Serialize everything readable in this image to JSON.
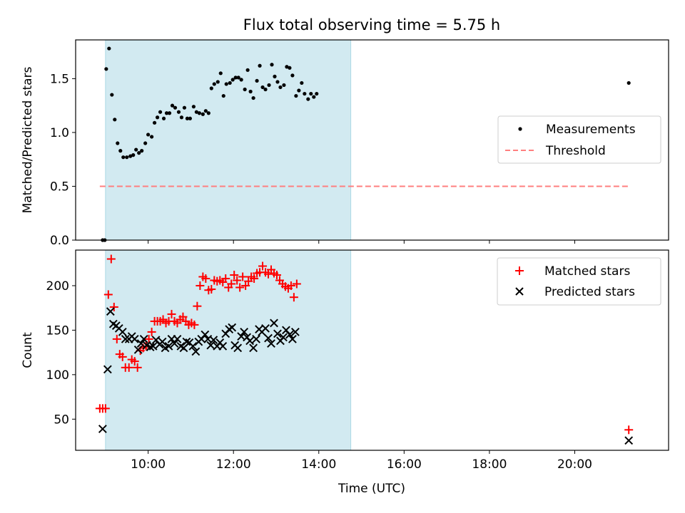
{
  "title": "Flux total observing time = 5.75 h",
  "xlabel": "Time (UTC)",
  "colors": {
    "shade": "#add8e6",
    "measurement": "#000000",
    "threshold": "#ff7f7f",
    "matched": "#ff0000",
    "predicted": "#000000"
  },
  "chart_data": [
    {
      "type": "scatter",
      "ylabel": "Matched/Predicted stars",
      "x_range_hours": [
        8.3,
        22.2
      ],
      "ylim": [
        0,
        1.86
      ],
      "y_ticks": [
        0.0,
        0.5,
        1.0,
        1.5
      ],
      "y_tick_labels": [
        "0.0",
        "0.5",
        "1.0",
        "1.5"
      ],
      "shaded_interval": [
        "09:00",
        "14:45"
      ],
      "legend": {
        "placement": "center-right",
        "entries": [
          "Measurements",
          "Threshold"
        ]
      },
      "threshold": {
        "name": "Threshold",
        "y": 0.5,
        "x": [
          "08:52",
          "21:15"
        ]
      },
      "series": [
        {
          "name": "Measurements",
          "points": [
            [
              "08:56",
              0.0
            ],
            [
              "08:59",
              0.0
            ],
            [
              "09:01",
              1.59
            ],
            [
              "09:05",
              1.78
            ],
            [
              "09:09",
              1.35
            ],
            [
              "09:13",
              1.12
            ],
            [
              "09:17",
              0.9
            ],
            [
              "09:21",
              0.83
            ],
            [
              "09:25",
              0.77
            ],
            [
              "09:30",
              0.77
            ],
            [
              "09:35",
              0.78
            ],
            [
              "09:39",
              0.79
            ],
            [
              "09:43",
              0.84
            ],
            [
              "09:47",
              0.81
            ],
            [
              "09:51",
              0.83
            ],
            [
              "09:56",
              0.9
            ],
            [
              "10:00",
              0.98
            ],
            [
              "10:05",
              0.96
            ],
            [
              "10:09",
              1.09
            ],
            [
              "10:13",
              1.14
            ],
            [
              "10:17",
              1.19
            ],
            [
              "10:22",
              1.13
            ],
            [
              "10:26",
              1.18
            ],
            [
              "10:30",
              1.18
            ],
            [
              "10:34",
              1.25
            ],
            [
              "10:38",
              1.23
            ],
            [
              "10:43",
              1.19
            ],
            [
              "10:47",
              1.14
            ],
            [
              "10:51",
              1.23
            ],
            [
              "10:55",
              1.13
            ],
            [
              "10:59",
              1.13
            ],
            [
              "11:04",
              1.24
            ],
            [
              "11:08",
              1.19
            ],
            [
              "11:12",
              1.18
            ],
            [
              "11:17",
              1.17
            ],
            [
              "11:21",
              1.2
            ],
            [
              "11:25",
              1.18
            ],
            [
              "11:29",
              1.41
            ],
            [
              "11:33",
              1.45
            ],
            [
              "11:38",
              1.47
            ],
            [
              "11:42",
              1.55
            ],
            [
              "11:46",
              1.34
            ],
            [
              "11:50",
              1.45
            ],
            [
              "11:55",
              1.46
            ],
            [
              "11:59",
              1.49
            ],
            [
              "12:03",
              1.51
            ],
            [
              "12:07",
              1.51
            ],
            [
              "12:11",
              1.49
            ],
            [
              "12:16",
              1.4
            ],
            [
              "12:20",
              1.58
            ],
            [
              "12:24",
              1.38
            ],
            [
              "12:28",
              1.32
            ],
            [
              "12:33",
              1.48
            ],
            [
              "12:37",
              1.62
            ],
            [
              "12:41",
              1.42
            ],
            [
              "12:45",
              1.4
            ],
            [
              "12:50",
              1.44
            ],
            [
              "12:54",
              1.63
            ],
            [
              "12:58",
              1.52
            ],
            [
              "13:02",
              1.47
            ],
            [
              "13:06",
              1.42
            ],
            [
              "13:11",
              1.44
            ],
            [
              "13:15",
              1.61
            ],
            [
              "13:19",
              1.6
            ],
            [
              "13:23",
              1.53
            ],
            [
              "13:28",
              1.34
            ],
            [
              "13:32",
              1.39
            ],
            [
              "13:36",
              1.46
            ],
            [
              "13:40",
              1.36
            ],
            [
              "13:45",
              1.31
            ],
            [
              "13:49",
              1.36
            ],
            [
              "13:53",
              1.33
            ],
            [
              "13:57",
              1.36
            ],
            [
              "21:16",
              1.46
            ]
          ]
        }
      ]
    },
    {
      "type": "scatter",
      "ylabel": "Count",
      "x_range_hours": [
        8.3,
        22.2
      ],
      "ylim": [
        15,
        240
      ],
      "y_ticks": [
        50,
        100,
        150,
        200
      ],
      "y_tick_labels": [
        "50",
        "100",
        "150",
        "200"
      ],
      "x_tick_labels": [
        "10:00",
        "12:00",
        "14:00",
        "16:00",
        "18:00",
        "20:00"
      ],
      "shaded_interval": [
        "09:00",
        "14:45"
      ],
      "legend": {
        "placement": "top-right",
        "entries": [
          "Matched stars",
          "Predicted stars"
        ]
      },
      "series": [
        {
          "name": "Matched stars",
          "marker": "plus",
          "points": [
            [
              "08:52",
              62
            ],
            [
              "08:56",
              62
            ],
            [
              "09:00",
              62
            ],
            [
              "09:04",
              190
            ],
            [
              "09:08",
              230
            ],
            [
              "09:12",
              176
            ],
            [
              "09:16",
              140
            ],
            [
              "09:20",
              123
            ],
            [
              "09:24",
              120
            ],
            [
              "09:28",
              108
            ],
            [
              "09:33",
              108
            ],
            [
              "09:37",
              117
            ],
            [
              "09:41",
              115
            ],
            [
              "09:45",
              108
            ],
            [
              "09:49",
              127
            ],
            [
              "09:53",
              130
            ],
            [
              "09:57",
              132
            ],
            [
              "10:01",
              140
            ],
            [
              "10:05",
              148
            ],
            [
              "10:09",
              160
            ],
            [
              "10:13",
              160
            ],
            [
              "10:17",
              160
            ],
            [
              "10:21",
              162
            ],
            [
              "10:25",
              158
            ],
            [
              "10:29",
              160
            ],
            [
              "10:33",
              168
            ],
            [
              "10:37",
              160
            ],
            [
              "10:41",
              158
            ],
            [
              "10:45",
              162
            ],
            [
              "10:49",
              165
            ],
            [
              "10:53",
              160
            ],
            [
              "10:57",
              156
            ],
            [
              "11:01",
              158
            ],
            [
              "11:05",
              156
            ],
            [
              "11:09",
              177
            ],
            [
              "11:13",
              200
            ],
            [
              "11:17",
              210
            ],
            [
              "11:21",
              208
            ],
            [
              "11:25",
              195
            ],
            [
              "11:29",
              196
            ],
            [
              "11:33",
              206
            ],
            [
              "11:37",
              205
            ],
            [
              "11:41",
              206
            ],
            [
              "11:45",
              204
            ],
            [
              "11:49",
              208
            ],
            [
              "11:53",
              198
            ],
            [
              "11:57",
              202
            ],
            [
              "12:01",
              212
            ],
            [
              "12:05",
              206
            ],
            [
              "12:09",
              198
            ],
            [
              "12:13",
              210
            ],
            [
              "12:17",
              200
            ],
            [
              "12:21",
              205
            ],
            [
              "12:25",
              210
            ],
            [
              "12:29",
              208
            ],
            [
              "12:33",
              214
            ],
            [
              "12:37",
              215
            ],
            [
              "12:41",
              222
            ],
            [
              "12:45",
              215
            ],
            [
              "12:49",
              213
            ],
            [
              "12:53",
              218
            ],
            [
              "12:57",
              214
            ],
            [
              "13:01",
              212
            ],
            [
              "13:05",
              206
            ],
            [
              "13:09",
              202
            ],
            [
              "13:13",
              199
            ],
            [
              "13:17",
              197
            ],
            [
              "13:21",
              200
            ],
            [
              "13:25",
              187
            ],
            [
              "13:29",
              202
            ],
            [
              "21:16",
              38
            ]
          ]
        },
        {
          "name": "Predicted stars",
          "marker": "x",
          "points": [
            [
              "08:56",
              39
            ],
            [
              "09:03",
              106
            ],
            [
              "09:07",
              171
            ],
            [
              "09:11",
              157
            ],
            [
              "09:15",
              155
            ],
            [
              "09:19",
              152
            ],
            [
              "09:24",
              148
            ],
            [
              "09:28",
              140
            ],
            [
              "09:33",
              140
            ],
            [
              "09:37",
              143
            ],
            [
              "09:41",
              140
            ],
            [
              "09:46",
              128
            ],
            [
              "09:50",
              135
            ],
            [
              "09:54",
              140
            ],
            [
              "09:58",
              133
            ],
            [
              "10:03",
              131
            ],
            [
              "10:07",
              132
            ],
            [
              "10:11",
              139
            ],
            [
              "10:16",
              134
            ],
            [
              "10:20",
              137
            ],
            [
              "10:24",
              130
            ],
            [
              "10:29",
              132
            ],
            [
              "10:33",
              140
            ],
            [
              "10:37",
              135
            ],
            [
              "10:41",
              140
            ],
            [
              "10:46",
              132
            ],
            [
              "10:50",
              130
            ],
            [
              "10:54",
              137
            ],
            [
              "10:58",
              136
            ],
            [
              "11:03",
              132
            ],
            [
              "11:07",
              126
            ],
            [
              "11:11",
              137
            ],
            [
              "11:15",
              140
            ],
            [
              "11:20",
              145
            ],
            [
              "11:24",
              140
            ],
            [
              "11:28",
              133
            ],
            [
              "11:32",
              139
            ],
            [
              "11:37",
              132
            ],
            [
              "11:41",
              136
            ],
            [
              "11:45",
              132
            ],
            [
              "11:49",
              146
            ],
            [
              "11:54",
              151
            ],
            [
              "11:58",
              153
            ],
            [
              "12:02",
              133
            ],
            [
              "12:06",
              130
            ],
            [
              "12:11",
              143
            ],
            [
              "12:15",
              148
            ],
            [
              "12:19",
              142
            ],
            [
              "12:23",
              138
            ],
            [
              "12:28",
              130
            ],
            [
              "12:32",
              140
            ],
            [
              "12:36",
              151
            ],
            [
              "12:40",
              148
            ],
            [
              "12:45",
              152
            ],
            [
              "12:49",
              141
            ],
            [
              "12:53",
              135
            ],
            [
              "12:57",
              158
            ],
            [
              "13:02",
              146
            ],
            [
              "13:06",
              138
            ],
            [
              "13:10",
              142
            ],
            [
              "13:14",
              150
            ],
            [
              "13:19",
              145
            ],
            [
              "13:23",
              140
            ],
            [
              "13:27",
              148
            ],
            [
              "21:16",
              26
            ]
          ]
        }
      ]
    }
  ]
}
